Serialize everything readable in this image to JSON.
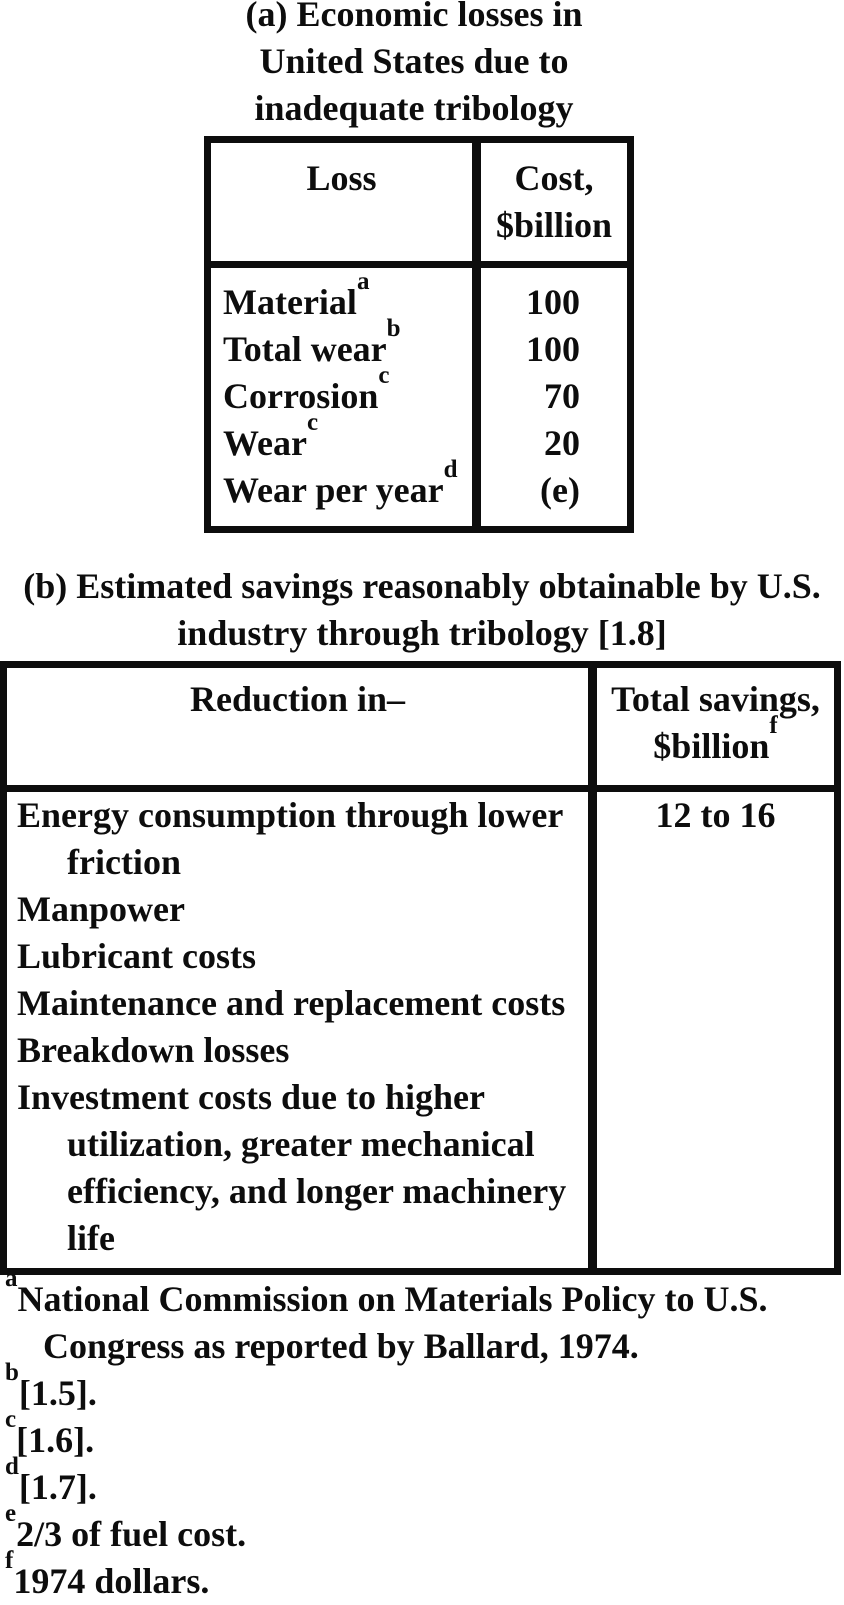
{
  "section_a": {
    "title_lines": [
      "(a) Economic losses in",
      "United States due to",
      "inadequate tribology"
    ],
    "table": {
      "header": {
        "col1": "Loss",
        "col2_line1": "Cost,",
        "col2_line2": "$billion"
      },
      "rows": [
        {
          "label": "Material",
          "sup": "a",
          "value": "100"
        },
        {
          "label": "Total wear",
          "sup": "b",
          "value": "100"
        },
        {
          "label": "Corrosion",
          "sup": "c",
          "value": "70"
        },
        {
          "label": "Wear",
          "sup": "c",
          "value": "20"
        },
        {
          "label": "Wear per year",
          "sup": "d",
          "value": "(e)"
        }
      ]
    }
  },
  "section_b": {
    "title_lines": [
      "(b) Estimated savings reasonably obtainable by U.S.",
      "industry through tribology [1.8]"
    ],
    "table": {
      "header": {
        "col1": "Reduction in–",
        "col2_line1": "Total savings,",
        "col2_line2": "$billion",
        "col2_sup": "f"
      },
      "body_lines": [
        {
          "text": "Energy consumption through lower"
        },
        {
          "text": "friction",
          "indent": true
        },
        {
          "text": "Manpower"
        },
        {
          "text": "Lubricant costs"
        },
        {
          "text": "Maintenance and replacement costs"
        },
        {
          "text": "Breakdown losses"
        },
        {
          "text": "Investment costs due to higher"
        },
        {
          "text": "utilization, greater mechanical",
          "indent": true
        },
        {
          "text": "efficiency, and longer machinery",
          "indent": true
        },
        {
          "text": "life",
          "indent": true
        }
      ],
      "value": "12 to 16"
    }
  },
  "footnotes": [
    {
      "sup": "a",
      "line1": "National Commission on Materials Policy to U.S.",
      "line2": "Congress as reported by Ballard, 1974."
    },
    {
      "sup": "b",
      "line1": "[1.5]."
    },
    {
      "sup": "c",
      "line1": "[1.6]."
    },
    {
      "sup": "d",
      "line1": "[1.7]."
    },
    {
      "sup": "e",
      "line1": "2/3 of fuel cost."
    },
    {
      "sup": "f",
      "line1": "1974 dollars."
    }
  ]
}
